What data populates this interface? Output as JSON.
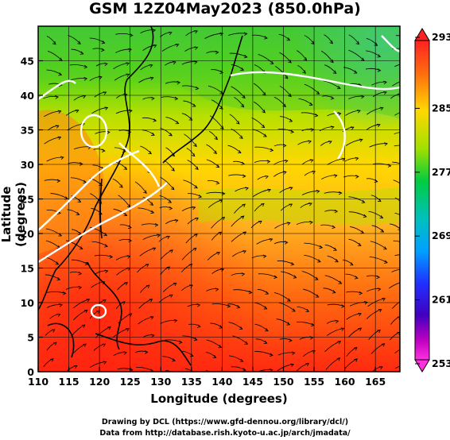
{
  "title": "GSM 12Z04May2023 (850.0hPa)",
  "axes": {
    "x_label": "Longitude (degrees)",
    "y_label": "Latitude  (degrees)",
    "x_ticks": [
      "110",
      "115",
      "120",
      "125",
      "130",
      "135",
      "140",
      "145",
      "150",
      "155",
      "160",
      "165"
    ],
    "y_ticks": [
      "0",
      "5",
      "10",
      "15",
      "20",
      "25",
      "30",
      "35",
      "40",
      "45"
    ],
    "lon_range": [
      110,
      169
    ],
    "lat_range": [
      0,
      50
    ]
  },
  "colorbar": {
    "labels": [
      "293",
      "285",
      "277",
      "269",
      "261",
      "253"
    ],
    "colors": [
      "#ff2222",
      "#ff6a10",
      "#ffd800",
      "#a0e000",
      "#00cc40",
      "#00c0c0",
      "#00a0ff",
      "#2030ff",
      "#4000c0",
      "#c000c0",
      "#ff30e0"
    ]
  },
  "credits": {
    "line1": "Drawing by DCL (https://www.gfd-dennou.org/library/dcl/)",
    "line2": "Data from http://database.rish.kyoto-u.ac.jp/arch/jmadata/"
  }
}
